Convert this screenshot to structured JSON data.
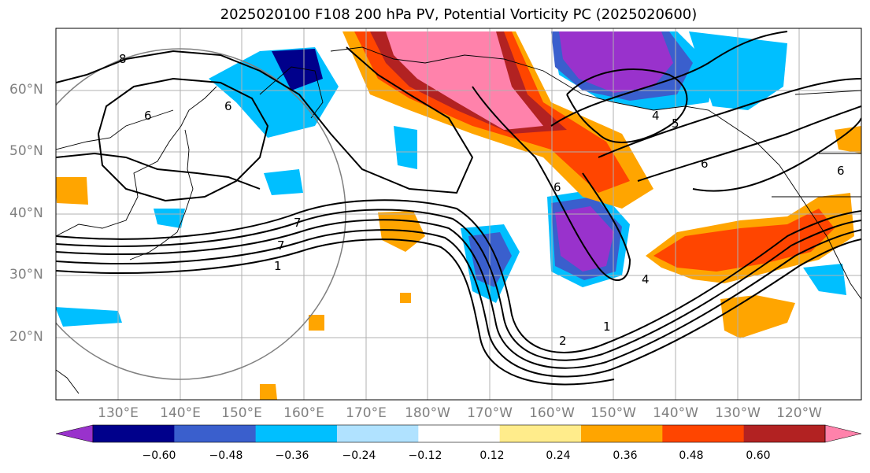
{
  "title": "2025020100 F108 200 hPa PV, Potential Vorticity PC (2025020600)",
  "map": {
    "latitude_labels": [
      "60°N",
      "50°N",
      "40°N",
      "30°N",
      "20°N"
    ],
    "longitude_labels": [
      "130°E",
      "140°E",
      "150°E",
      "160°E",
      "170°E",
      "180°W",
      "170°W",
      "160°W",
      "150°W",
      "140°W",
      "130°W",
      "120°W"
    ],
    "contour_labels": [
      "8",
      "6",
      "6",
      "7",
      "7",
      "1",
      "4",
      "5",
      "6",
      "4",
      "2",
      "1",
      "6",
      "6"
    ],
    "gridlines": true,
    "coastlines": true
  },
  "colorbar": {
    "ticks": [
      "−0.60",
      "−0.48",
      "−0.36",
      "−0.24",
      "−0.12",
      "0.12",
      "0.24",
      "0.36",
      "0.48",
      "0.60"
    ],
    "colors": [
      "#9932CC",
      "#00008B",
      "#3A5FCD",
      "#00BFFF",
      "#B0E2FF",
      "#FFFFFF",
      "#FFEC8B",
      "#FFA500",
      "#FF4500",
      "#B22222",
      "#FF82AB"
    ]
  }
}
